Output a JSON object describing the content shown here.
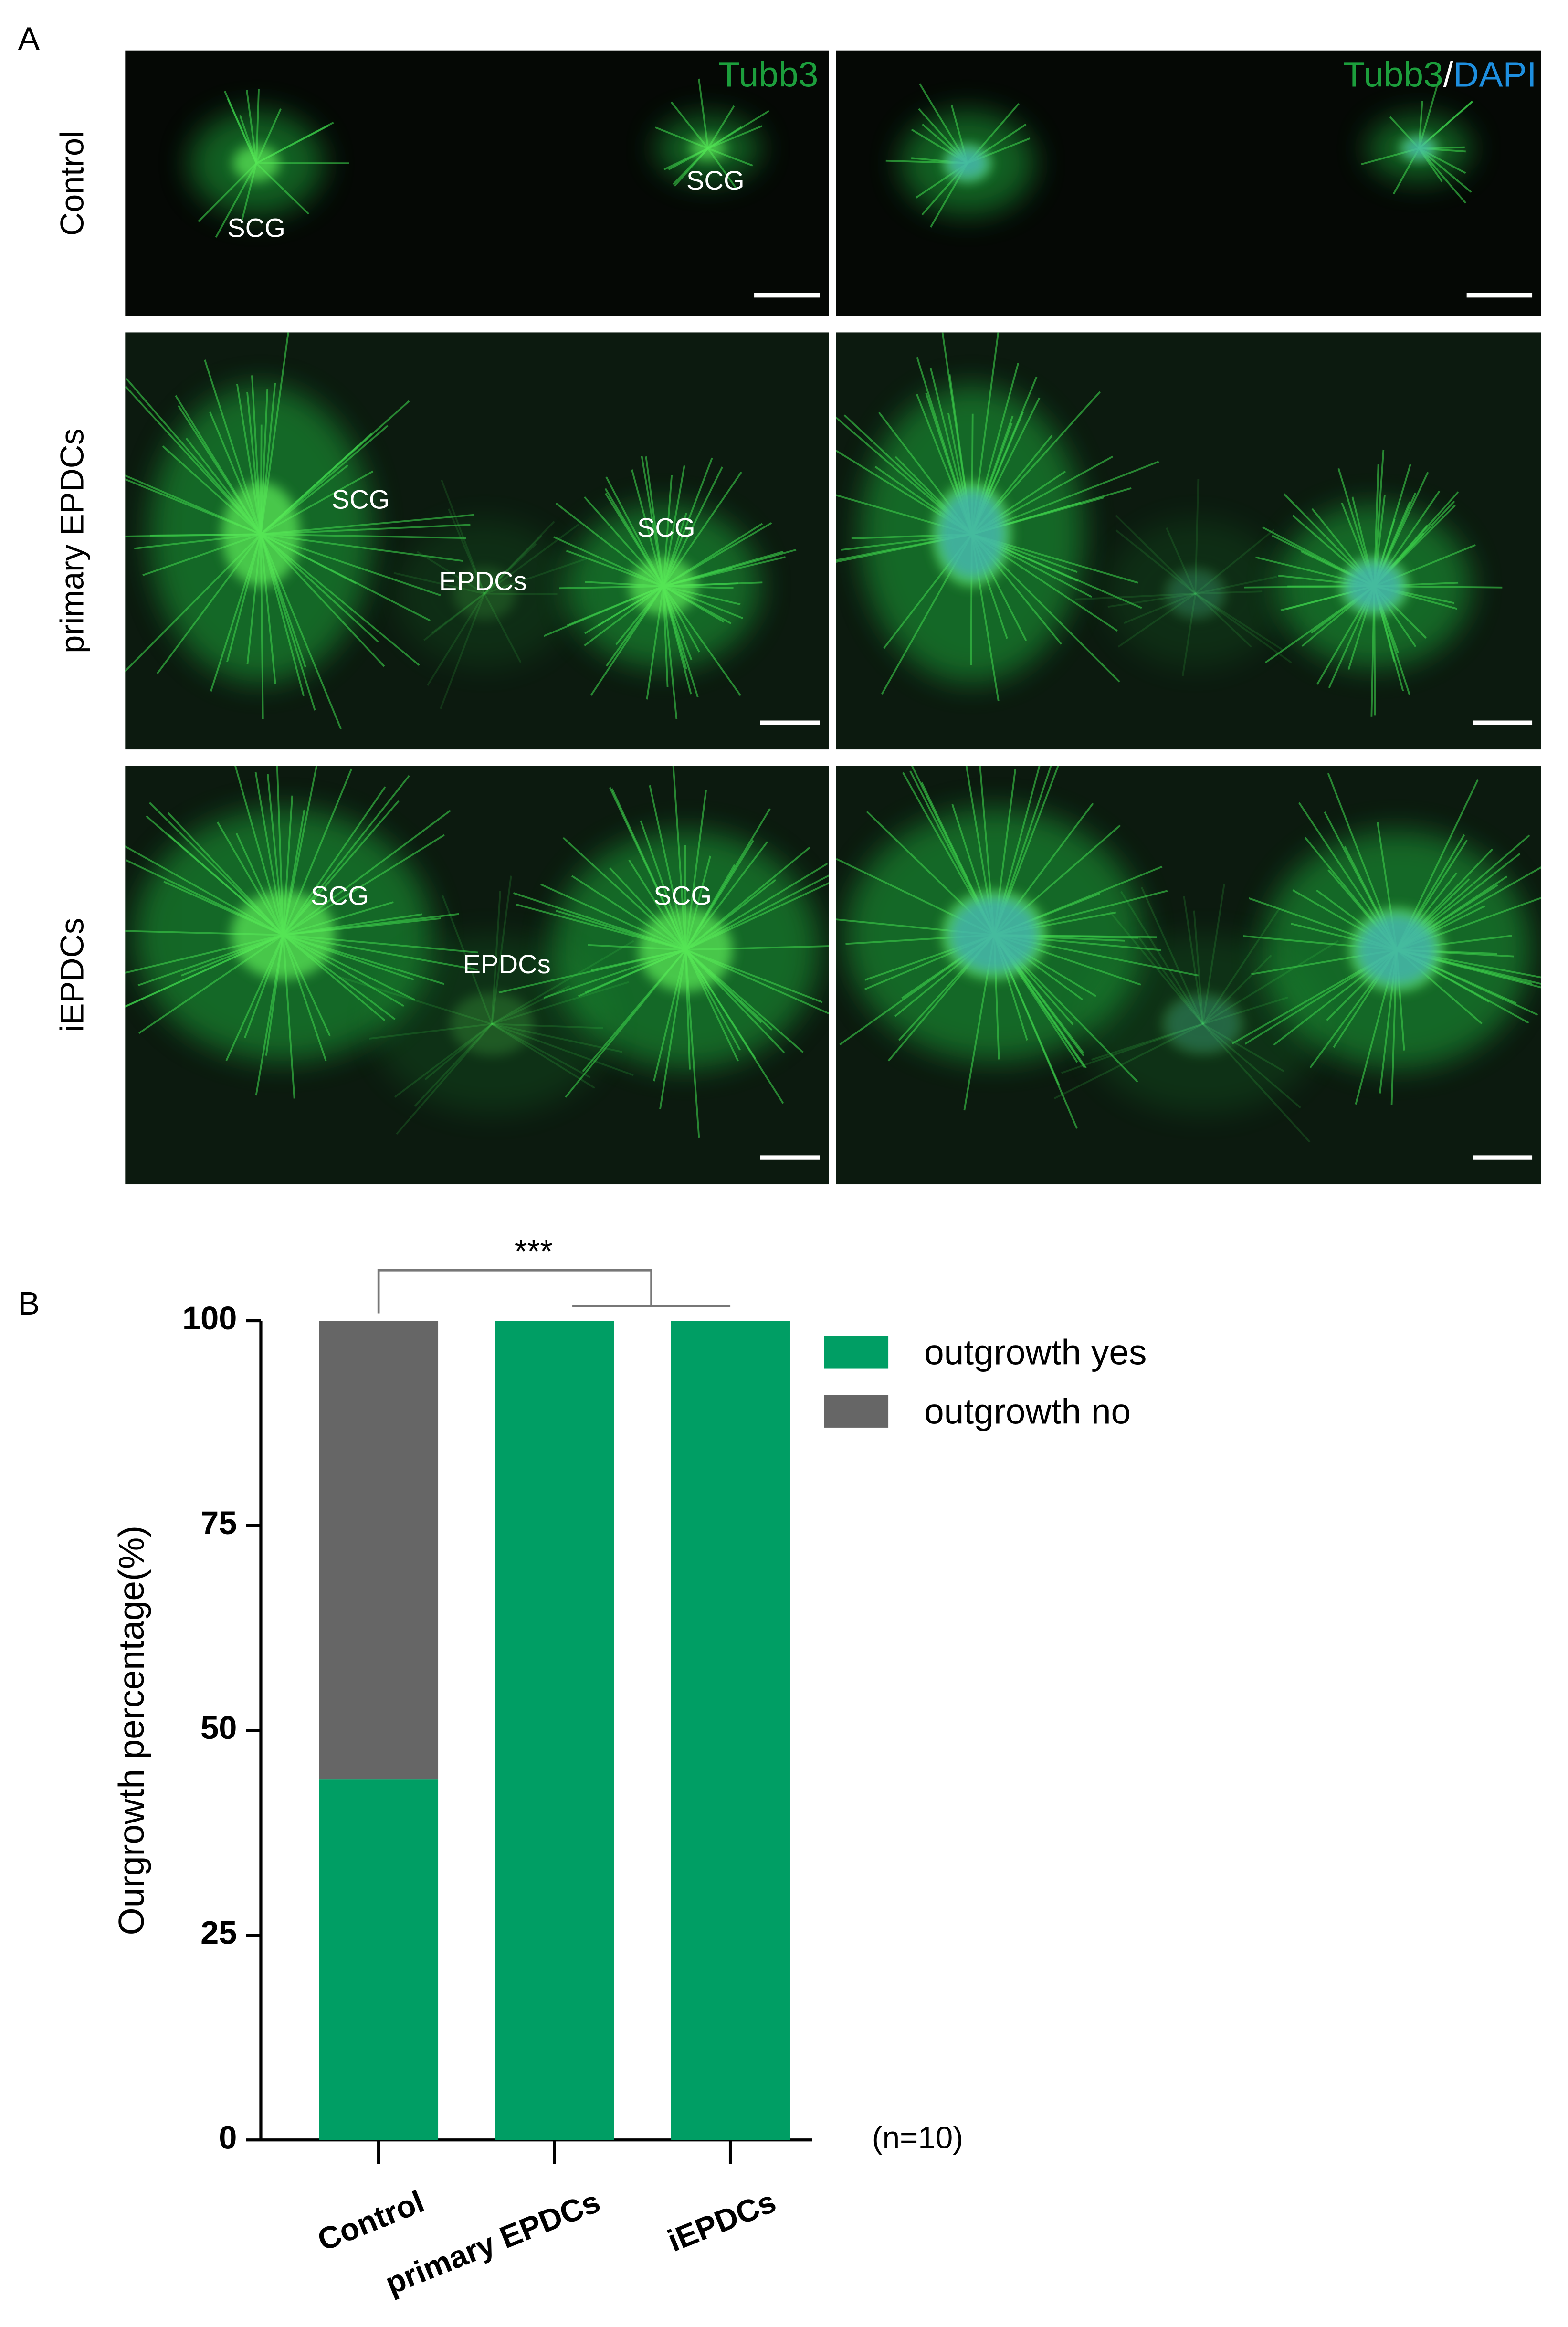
{
  "panel_a": {
    "label": "A",
    "rows": [
      {
        "label": "Control",
        "annotations": [
          "SCG",
          "SCG"
        ]
      },
      {
        "label": "primary EPDCs",
        "annotations": [
          "SCG",
          "EPDCs",
          "SCG"
        ]
      },
      {
        "label": "iEPDCs",
        "annotations": [
          "SCG",
          "EPDCs",
          "SCG"
        ]
      }
    ],
    "channel_label": "Tubb3",
    "merge_label": [
      "Tubb3",
      "/",
      "DAPI"
    ]
  },
  "chart_data": {
    "type": "stacked_bar",
    "panel_label": "B",
    "ylabel": "Ourgrowth percentage(%)",
    "categories": [
      "Control",
      "primary EPDCs",
      "iEPDCs"
    ],
    "series": [
      {
        "name": "outgrowth yes",
        "color": "#009e64",
        "values": [
          44,
          100,
          100
        ]
      },
      {
        "name": "outgrowth no",
        "color": "#666666",
        "values": [
          56,
          0,
          0
        ]
      }
    ],
    "ylim": [
      0,
      100
    ],
    "yticks": [
      0,
      25,
      50,
      75,
      100
    ],
    "significance": "***",
    "note": "(n=10)"
  }
}
